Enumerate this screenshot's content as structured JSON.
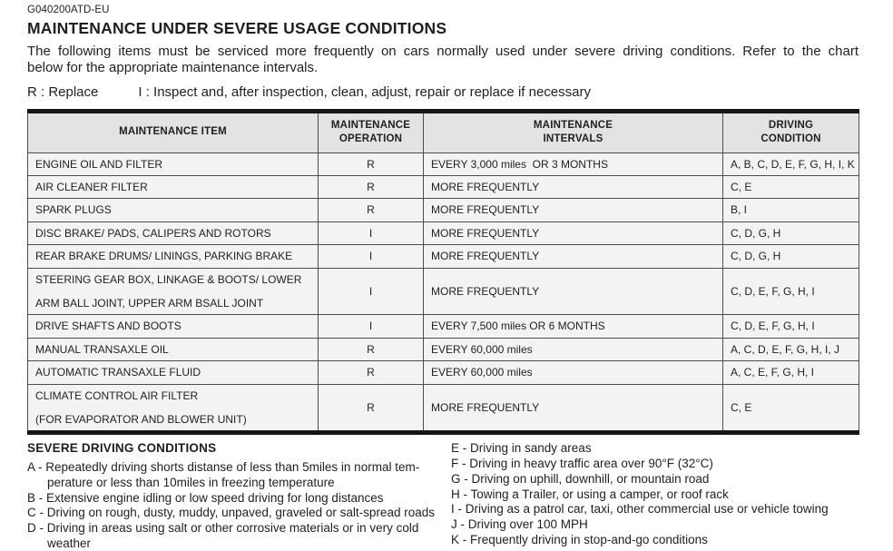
{
  "page": {
    "doc_code": "G040200ATD-EU",
    "title": "MAINTENANCE UNDER SEVERE USAGE CONDITIONS",
    "intro_lines": [
      "The following items must be serviced more frequently on cars normally used under severe driving conditions. Refer to the chart",
      "below for the appropriate maintenance intervals."
    ],
    "legend_replace": "R : Replace",
    "legend_inspect": "I : Inspect and, after inspection, clean, adjust, repair or replace if necessary"
  },
  "colors": {
    "text": "#1f1f1f",
    "table_header_bg": "#e3e3e3",
    "table_row_bg": "#f3f3f3",
    "thin_border": "#4d4d4d",
    "thick_border": "#161616"
  },
  "table": {
    "headers": [
      [
        "MAINTENANCE ITEM"
      ],
      [
        "MAINTENANCE",
        "OPERATION"
      ],
      [
        "MAINTENANCE",
        "INTERVALS"
      ],
      [
        "DRIVING",
        "CONDITION"
      ]
    ],
    "rows": [
      {
        "item_lines": [
          "ENGINE OIL AND FILTER"
        ],
        "operation": "R",
        "interval": "EVERY 3,000 miles  OR 3 MONTHS",
        "condition": "A, B, C, D, E, F, G, H, I, K"
      },
      {
        "item_lines": [
          "AIR CLEANER FILTER"
        ],
        "operation": "R",
        "interval": "MORE FREQUENTLY",
        "condition": "C, E"
      },
      {
        "item_lines": [
          "SPARK PLUGS"
        ],
        "operation": "R",
        "interval": "MORE FREQUENTLY",
        "condition": "B, I"
      },
      {
        "item_lines": [
          "DISC BRAKE/ PADS, CALIPERS AND ROTORS"
        ],
        "operation": "I",
        "interval": "MORE FREQUENTLY",
        "condition": "C, D, G, H"
      },
      {
        "item_lines": [
          "REAR BRAKE DRUMS/ LININGS, PARKING BRAKE"
        ],
        "operation": "I",
        "interval": "MORE FREQUENTLY",
        "condition": "C, D, G, H"
      },
      {
        "item_lines": [
          "STEERING GEAR BOX, LINKAGE & BOOTS/ LOWER",
          "ARM BALL JOINT, UPPER ARM BSALL JOINT"
        ],
        "operation": "I",
        "interval": "MORE FREQUENTLY",
        "condition": "C, D, E, F, G, H, I"
      },
      {
        "item_lines": [
          "DRIVE SHAFTS AND BOOTS"
        ],
        "operation": "I",
        "interval": "EVERY 7,500 miles OR 6 MONTHS",
        "condition": "C, D, E, F, G, H, I"
      },
      {
        "item_lines": [
          "MANUAL TRANSAXLE OIL"
        ],
        "operation": "R",
        "interval": "EVERY 60,000 miles",
        "condition": "A, C, D, E, F, G, H, I, J"
      },
      {
        "item_lines": [
          "AUTOMATIC TRANSAXLE FLUID"
        ],
        "operation": "R",
        "interval": "EVERY 60,000 miles",
        "condition": "A, C, E, F, G, H, I"
      },
      {
        "item_lines": [
          "CLIMATE CONTROL AIR FILTER",
          "(FOR EVAPORATOR AND BLOWER UNIT)"
        ],
        "operation": "R",
        "interval": "MORE FREQUENTLY",
        "condition": "C, E"
      }
    ]
  },
  "severe_conditions": {
    "heading": "SEVERE DRIVING CONDITIONS",
    "left": [
      {
        "code": "A",
        "lines": [
          "Repeatedly driving shorts distanse of less than 5miles in normal tem-",
          "perature or less than 10miles in freezing temperature"
        ]
      },
      {
        "code": "B",
        "lines": [
          "Extensive engine idling or low speed driving for long distances"
        ]
      },
      {
        "code": "C",
        "lines": [
          "Driving on rough, dusty, muddy, unpaved, graveled or salt-spread roads"
        ]
      },
      {
        "code": "D",
        "lines": [
          "Driving in areas using salt or other corrosive materials or in very cold",
          "weather"
        ]
      }
    ],
    "right": [
      {
        "code": "E",
        "lines": [
          "Driving in sandy areas"
        ]
      },
      {
        "code": "F",
        "lines": [
          "Driving in heavy traffic area over 90°F (32°C)"
        ]
      },
      {
        "code": "G",
        "lines": [
          "Driving on uphill, downhill, or mountain road"
        ]
      },
      {
        "code": "H",
        "lines": [
          "Towing a Trailer, or using a camper, or roof rack"
        ]
      },
      {
        "code": "I",
        "lines": [
          "Driving as a patrol car, taxi, other commercial use or vehicle towing"
        ]
      },
      {
        "code": "J",
        "lines": [
          "Driving over 100 MPH"
        ]
      },
      {
        "code": "K",
        "lines": [
          "Frequently driving in stop-and-go conditions"
        ]
      }
    ]
  }
}
